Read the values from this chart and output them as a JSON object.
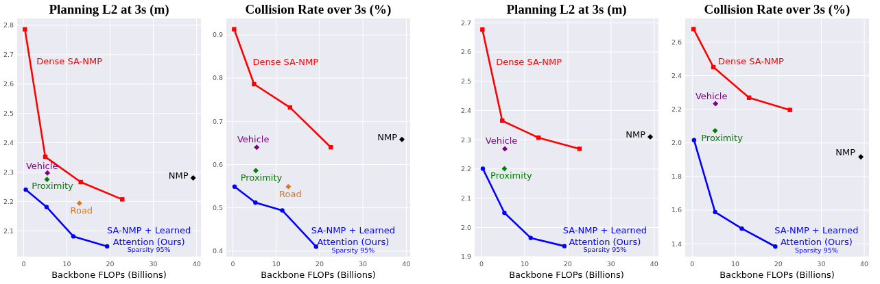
{
  "chart_data": [
    {
      "type": "line",
      "title": "Planning L2 at 3s (m)",
      "xlabel": "Backbone FLOPs (Billions)",
      "xlim": [
        -1.5,
        41
      ],
      "xticks": [
        0,
        10,
        20,
        30,
        40
      ],
      "ylim": [
        2.012,
        2.823
      ],
      "yticks": [
        2.1,
        2.2,
        2.3,
        2.4,
        2.5,
        2.6,
        2.7,
        2.8
      ],
      "grid": true,
      "annotations": [
        "Sparsity 95%"
      ],
      "series": [
        {
          "name": "Dense SA-NMP",
          "marker": "square",
          "color": "#ff0000",
          "x": [
            0.3,
            5.0,
            13.2,
            22.8
          ],
          "values": [
            2.786,
            2.352,
            2.266,
            2.207
          ]
        },
        {
          "name": "SA-NMP + Learned Attention (Ours)",
          "marker": "circle",
          "color": "#0000ff",
          "x": [
            0.5,
            5.3,
            11.5,
            19.3
          ],
          "values": [
            2.24,
            2.181,
            2.081,
            2.047
          ]
        },
        {
          "name": "Vehicle",
          "type": "scatter",
          "marker": "diamond",
          "color": "#800080",
          "x": [
            5.5
          ],
          "values": [
            2.297
          ]
        },
        {
          "name": "Proximity",
          "type": "scatter",
          "marker": "diamond",
          "color": "#008000",
          "x": [
            5.4
          ],
          "values": [
            2.275
          ]
        },
        {
          "name": "Road",
          "type": "scatter",
          "marker": "diamond",
          "color": "#dd7722",
          "x": [
            12.9
          ],
          "values": [
            2.194
          ]
        },
        {
          "name": "NMP",
          "type": "scatter",
          "marker": "diamond",
          "color": "#000000",
          "x": [
            39.2
          ],
          "values": [
            2.28
          ]
        }
      ]
    },
    {
      "type": "line",
      "title": "Collision Rate over 3s (%)",
      "xlabel": "Backbone FLOPs (Billions)",
      "xlim": [
        -1.5,
        40.9
      ],
      "xticks": [
        0,
        10,
        20,
        30,
        40
      ],
      "ylim": [
        0.387,
        0.938
      ],
      "yticks": [
        0.4,
        0.5,
        0.6,
        0.7,
        0.8,
        0.9
      ],
      "grid": true,
      "annotations": [
        "Sparsity 95%"
      ],
      "series": [
        {
          "name": "Dense SA-NMP",
          "marker": "square",
          "color": "#ff0000",
          "x": [
            0.3,
            4.9,
            13.2,
            22.6
          ],
          "values": [
            0.913,
            0.786,
            0.732,
            0.64
          ]
        },
        {
          "name": "SA-NMP + Learned Attention (Ours)",
          "marker": "circle",
          "color": "#0000ff",
          "x": [
            0.4,
            5.2,
            11.4,
            19.2
          ],
          "values": [
            0.549,
            0.512,
            0.494,
            0.41
          ]
        },
        {
          "name": "Vehicle",
          "type": "scatter",
          "marker": "diamond",
          "color": "#800080",
          "x": [
            5.5
          ],
          "values": [
            0.64
          ]
        },
        {
          "name": "Proximity",
          "type": "scatter",
          "marker": "diamond",
          "color": "#008000",
          "x": [
            5.3
          ],
          "values": [
            0.586
          ]
        },
        {
          "name": "Road",
          "type": "scatter",
          "marker": "diamond",
          "color": "#dd7722",
          "x": [
            12.8
          ],
          "values": [
            0.549
          ]
        },
        {
          "name": "NMP",
          "type": "scatter",
          "marker": "diamond",
          "color": "#000000",
          "x": [
            39.0
          ],
          "values": [
            0.658
          ]
        }
      ]
    },
    {
      "type": "line",
      "title": "Planning L2 at 3s (m)",
      "xlabel": "Backbone FLOPs (Billions)",
      "xlim": [
        -1.6,
        41
      ],
      "xticks": [
        0,
        10,
        20,
        30,
        40
      ],
      "ylim": [
        1.9,
        2.715
      ],
      "yticks": [
        1.9,
        {
          "value": 2,
          "label": "2.0"
        },
        2.1,
        2.2,
        2.3,
        2.4,
        2.5,
        2.6,
        2.7
      ],
      "grid": true,
      "annotations": [
        "Sparsity 95%"
      ],
      "series": [
        {
          "name": "Dense SA-NMP",
          "marker": "square",
          "color": "#ff0000",
          "x": [
            0.2,
            4.8,
            13.2,
            22.7
          ],
          "values": [
            2.677,
            2.365,
            2.307,
            2.269
          ]
        },
        {
          "name": "SA-NMP + Learned Attention (Ours)",
          "marker": "circle",
          "color": "#0000ff",
          "x": [
            0.3,
            5.3,
            11.4,
            19.2
          ],
          "values": [
            2.201,
            2.05,
            1.964,
            1.936
          ]
        },
        {
          "name": "Vehicle",
          "type": "scatter",
          "marker": "diamond",
          "color": "#800080",
          "x": [
            5.4
          ],
          "values": [
            2.269
          ]
        },
        {
          "name": "Proximity",
          "type": "scatter",
          "marker": "diamond",
          "color": "#008000",
          "x": [
            5.3
          ],
          "values": [
            2.201
          ]
        },
        {
          "name": "NMP",
          "type": "scatter",
          "marker": "diamond",
          "color": "#000000",
          "x": [
            39.1
          ],
          "values": [
            2.31
          ]
        }
      ]
    },
    {
      "type": "line",
      "title": "Collision Rate over 3s (%)",
      "xlabel": "Backbone FLOPs (Billions)",
      "xlim": [
        -1.65,
        41.1
      ],
      "xticks": [
        0,
        10,
        20,
        30,
        40
      ],
      "ylim": [
        1.324,
        2.74
      ],
      "yticks": [
        1.4,
        1.6,
        1.8,
        {
          "value": 2,
          "label": "2.0"
        },
        2.2,
        2.4,
        2.6
      ],
      "grid": true,
      "annotations": [
        "Sparsity 95%"
      ],
      "series": [
        {
          "name": "Dense SA-NMP",
          "marker": "square",
          "color": "#ff0000",
          "x": [
            0.3,
            4.9,
            13.2,
            22.7
          ],
          "values": [
            2.677,
            2.451,
            2.269,
            2.196
          ]
        },
        {
          "name": "SA-NMP + Learned Attention (Ours)",
          "marker": "circle",
          "color": "#0000ff",
          "x": [
            0.4,
            5.3,
            11.5,
            19.3
          ],
          "values": [
            2.017,
            1.589,
            1.491,
            1.384
          ]
        },
        {
          "name": "Vehicle",
          "type": "scatter",
          "marker": "diamond",
          "color": "#800080",
          "x": [
            5.4
          ],
          "values": [
            2.233
          ]
        },
        {
          "name": "Proximity",
          "type": "scatter",
          "marker": "diamond",
          "color": "#008000",
          "x": [
            5.3
          ],
          "values": [
            2.073
          ]
        },
        {
          "name": "NMP",
          "type": "scatter",
          "marker": "diamond",
          "color": "#000000",
          "x": [
            39.2
          ],
          "values": [
            1.917
          ]
        }
      ]
    }
  ]
}
